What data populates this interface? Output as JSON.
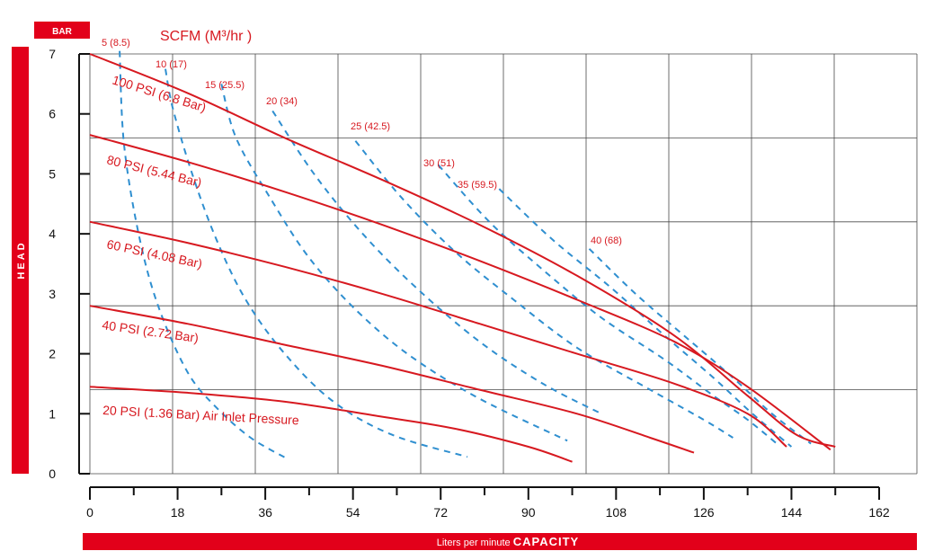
{
  "chart_data": {
    "type": "line",
    "title": "SCFM (M³/hr )",
    "ylabel": "HEAD",
    "yunit": "BAR",
    "xlabel_light": "Liters per minute",
    "xlabel_bold": "CAPACITY",
    "xlim": [
      0,
      162
    ],
    "ylim": [
      0,
      7
    ],
    "xticks": [
      0,
      18,
      36,
      54,
      72,
      90,
      108,
      126,
      144,
      162
    ],
    "yticks": [
      0,
      1,
      2,
      3,
      4,
      5,
      6,
      7
    ],
    "grid": true,
    "colors": {
      "pressure": "#d71920",
      "airflow": "#2f8fd0",
      "grid": "#4a4a4a",
      "bar": "#e2001a"
    },
    "pressure_curves": [
      {
        "label": "100 PSI (6.8 Bar)",
        "points": [
          [
            0,
            7.0
          ],
          [
            20,
            6.35
          ],
          [
            40,
            5.6
          ],
          [
            60,
            4.9
          ],
          [
            80,
            4.15
          ],
          [
            100,
            3.3
          ],
          [
            120,
            2.3
          ],
          [
            135,
            1.3
          ],
          [
            145,
            0.65
          ],
          [
            153,
            0.45
          ]
        ]
      },
      {
        "label": "80 PSI (5.44 Bar)",
        "points": [
          [
            0,
            5.65
          ],
          [
            20,
            5.2
          ],
          [
            40,
            4.7
          ],
          [
            60,
            4.15
          ],
          [
            80,
            3.55
          ],
          [
            100,
            2.9
          ],
          [
            120,
            2.2
          ],
          [
            135,
            1.45
          ],
          [
            152,
            0.4
          ]
        ]
      },
      {
        "label": "60 PSI (4.08 Bar)",
        "points": [
          [
            0,
            4.2
          ],
          [
            20,
            3.85
          ],
          [
            40,
            3.45
          ],
          [
            60,
            3.0
          ],
          [
            80,
            2.5
          ],
          [
            100,
            2.0
          ],
          [
            120,
            1.5
          ],
          [
            135,
            1.0
          ],
          [
            143,
            0.45
          ]
        ]
      },
      {
        "label": "40 PSI (2.72 Bar)",
        "points": [
          [
            0,
            2.8
          ],
          [
            20,
            2.5
          ],
          [
            40,
            2.15
          ],
          [
            60,
            1.8
          ],
          [
            80,
            1.4
          ],
          [
            100,
            1.0
          ],
          [
            115,
            0.6
          ],
          [
            124,
            0.35
          ]
        ]
      },
      {
        "label": "20 PSI (1.36 Bar) Air Inlet Pressure",
        "points": [
          [
            0,
            1.45
          ],
          [
            20,
            1.35
          ],
          [
            40,
            1.2
          ],
          [
            60,
            0.95
          ],
          [
            75,
            0.75
          ],
          [
            90,
            0.45
          ],
          [
            99,
            0.2
          ]
        ]
      }
    ],
    "airflow_curves": [
      {
        "label": "5 (8.5)",
        "points": [
          [
            6.1,
            7.05
          ],
          [
            7,
            5.5
          ],
          [
            10,
            4.0
          ],
          [
            14,
            2.8
          ],
          [
            20,
            1.7
          ],
          [
            26,
            1.1
          ],
          [
            33,
            0.6
          ],
          [
            40.5,
            0.25
          ]
        ]
      },
      {
        "label": "10 (17)",
        "points": [
          [
            15.5,
            6.75
          ],
          [
            17,
            6.1
          ],
          [
            21,
            5.0
          ],
          [
            26,
            3.9
          ],
          [
            32,
            2.9
          ],
          [
            40,
            2.0
          ],
          [
            50,
            1.2
          ],
          [
            62,
            0.65
          ],
          [
            77.5,
            0.28
          ]
        ]
      },
      {
        "label": "15 (25.5)",
        "points": [
          [
            27,
            6.5
          ],
          [
            30,
            5.6
          ],
          [
            37,
            4.6
          ],
          [
            45,
            3.6
          ],
          [
            55,
            2.7
          ],
          [
            66,
            1.95
          ],
          [
            80,
            1.25
          ],
          [
            98,
            0.55
          ]
        ]
      },
      {
        "label": "20 (34)",
        "points": [
          [
            37.5,
            6.05
          ],
          [
            46,
            5.0
          ],
          [
            56,
            4.0
          ],
          [
            67,
            3.1
          ],
          [
            80,
            2.2
          ],
          [
            93,
            1.5
          ],
          [
            105,
            1.0
          ]
        ]
      },
      {
        "label": "25 (42.5)",
        "points": [
          [
            54.5,
            5.55
          ],
          [
            64,
            4.6
          ],
          [
            75,
            3.7
          ],
          [
            87,
            2.9
          ],
          [
            100,
            2.1
          ],
          [
            115,
            1.4
          ],
          [
            126,
            0.9
          ],
          [
            132,
            0.6
          ]
        ]
      },
      {
        "label": "30 (51)",
        "points": [
          [
            71.5,
            5.15
          ],
          [
            82,
            4.2
          ],
          [
            93,
            3.4
          ],
          [
            105,
            2.6
          ],
          [
            118,
            1.9
          ],
          [
            128,
            1.3
          ],
          [
            135,
            0.9
          ],
          [
            141,
            0.5
          ]
        ]
      },
      {
        "label": "35 (59.5)",
        "points": [
          [
            84,
            4.75
          ],
          [
            95,
            3.9
          ],
          [
            107,
            3.1
          ],
          [
            118,
            2.3
          ],
          [
            128,
            1.6
          ],
          [
            136,
            1.0
          ],
          [
            144,
            0.45
          ]
        ]
      },
      {
        "label": "40 (68)",
        "points": [
          [
            102.5,
            3.75
          ],
          [
            112,
            3.0
          ],
          [
            122,
            2.3
          ],
          [
            132,
            1.6
          ],
          [
            140,
            1.0
          ],
          [
            148,
            0.5
          ]
        ]
      }
    ]
  }
}
